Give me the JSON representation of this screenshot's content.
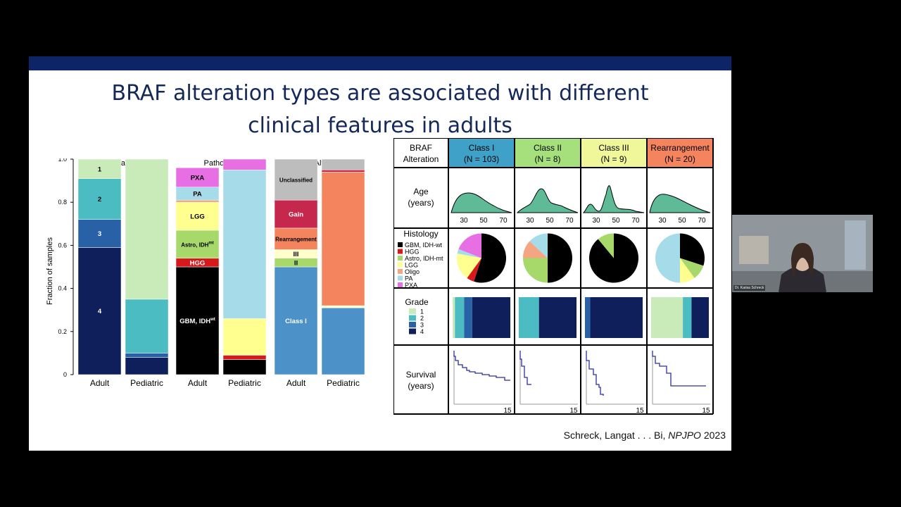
{
  "slide": {
    "title_line1": "BRAF alteration types are associated with different",
    "title_line2": "clinical features in adults",
    "citation_authors": "Schreck, Langat . . . Bi,",
    "citation_journal": "NPJPO",
    "citation_year": "2023"
  },
  "stacked_charts": {
    "ylabel": "Fraction of samples",
    "yticks": [
      "1.0",
      "0.8",
      "0.6",
      "0.4",
      "0.2",
      "0"
    ],
    "panels": [
      {
        "title": "Grade",
        "bars": [
          "Adult",
          "Pediatric"
        ]
      },
      {
        "title": "Pathology",
        "bars": [
          "Adult",
          "Pediatric"
        ]
      },
      {
        "title": "BRAF Alteration",
        "bars": [
          "Adult",
          "Pediatric"
        ]
      }
    ]
  },
  "chart_data": [
    {
      "type": "bar",
      "stacked": true,
      "title": "Grade",
      "ylabel": "Fraction of samples",
      "ylim": [
        0,
        1
      ],
      "categories": [
        "Adult",
        "Pediatric"
      ],
      "series": [
        {
          "name": "4",
          "color": "#0f1f5c",
          "values": [
            0.59,
            0.08
          ]
        },
        {
          "name": "3",
          "color": "#2961a6",
          "values": [
            0.13,
            0.02
          ]
        },
        {
          "name": "2",
          "color": "#4bbcc1",
          "values": [
            0.19,
            0.25
          ]
        },
        {
          "name": "1",
          "color": "#c9eab9",
          "values": [
            0.09,
            0.65
          ]
        }
      ]
    },
    {
      "type": "bar",
      "stacked": true,
      "title": "Pathology",
      "ylim": [
        0,
        1
      ],
      "categories": [
        "Adult",
        "Pediatric"
      ],
      "series": [
        {
          "name": "GBM, IDHwt",
          "color": "#000000",
          "values": [
            0.5,
            0.07
          ]
        },
        {
          "name": "HGG",
          "color": "#d7191c",
          "values": [
            0.04,
            0.02
          ]
        },
        {
          "name": "Astro, IDHmt",
          "color": "#a6d96a",
          "values": [
            0.13,
            0.0
          ]
        },
        {
          "name": "LGG",
          "color": "#ffff8f",
          "values": [
            0.13,
            0.17
          ]
        },
        {
          "name": "Oligo",
          "color": "#f4a582",
          "values": [
            0.01,
            0.0
          ]
        },
        {
          "name": "PA",
          "color": "#a6dbea",
          "values": [
            0.06,
            0.69
          ]
        },
        {
          "name": "PXA",
          "color": "#e76fe3",
          "values": [
            0.09,
            0.05
          ]
        }
      ]
    },
    {
      "type": "bar",
      "stacked": true,
      "title": "BRAF Alteration",
      "ylim": [
        0,
        1
      ],
      "categories": [
        "Adult",
        "Pediatric"
      ],
      "series": [
        {
          "name": "Class I",
          "color": "#4c92c8",
          "values": [
            0.5,
            0.31
          ]
        },
        {
          "name": "II",
          "color": "#a6d96a",
          "values": [
            0.04,
            0.0
          ]
        },
        {
          "name": "III",
          "color": "#ffffcc",
          "values": [
            0.04,
            0.01
          ]
        },
        {
          "name": "Rearrangement",
          "color": "#f4845e",
          "values": [
            0.1,
            0.62
          ]
        },
        {
          "name": "Gain",
          "color": "#c6274c",
          "values": [
            0.13,
            0.01
          ]
        },
        {
          "name": "Unclassified",
          "color": "#bdbdbd",
          "values": [
            0.19,
            0.05
          ]
        }
      ]
    }
  ],
  "table": {
    "header_label": [
      "BRAF",
      "Alteration"
    ],
    "columns": [
      {
        "name": "Class I",
        "n": "(N = 103)",
        "color": "#3fa0c8"
      },
      {
        "name": "Class II",
        "n": "(N = 8)",
        "color": "#a6e07c"
      },
      {
        "name": "Class III",
        "n": "(N = 9)",
        "color": "#f0f69a"
      },
      {
        "name": "Rearrangement",
        "n": "(N = 20)",
        "color": "#f4845e"
      }
    ],
    "rows": {
      "age": [
        "Age",
        "(years)"
      ],
      "age_ticks": [
        "30",
        "50",
        "70"
      ],
      "histology": "Histology",
      "histology_legend": [
        "GBM, IDH-wt",
        "HGG",
        "Astro, IDH-mt",
        "LGG",
        "Oligo",
        "PA",
        "PXA"
      ],
      "grade": "Grade",
      "grade_legend": [
        "1",
        "2",
        "3",
        "4"
      ],
      "survival": [
        "Survival",
        "(years)"
      ],
      "survival_tick": "15"
    },
    "pies": [
      [
        0.55,
        0.05,
        0.0,
        0.18,
        0.0,
        0.03,
        0.19
      ],
      [
        0.5,
        0.0,
        0.25,
        0.0,
        0.12,
        0.13,
        0.0
      ],
      [
        0.89,
        0.0,
        0.11,
        0.0,
        0.0,
        0.0,
        0.0
      ],
      [
        0.3,
        0.0,
        0.1,
        0.1,
        0.0,
        0.5,
        0.0
      ]
    ],
    "grades": [
      [
        0.04,
        0.16,
        0.14,
        0.66
      ],
      [
        0.0,
        0.35,
        0.0,
        0.65
      ],
      [
        0.0,
        0.0,
        0.09,
        0.91
      ],
      [
        0.55,
        0.15,
        0.0,
        0.3
      ]
    ]
  },
  "video": {
    "participant": "Dr. Karisa Schreck"
  },
  "colors": {
    "band": "#0d2466",
    "title": "#14285a",
    "density": "#5fba98",
    "survival": "#2b2f9e",
    "histology": [
      "#000000",
      "#d7191c",
      "#a6d96a",
      "#ffff8f",
      "#f4a582",
      "#a6dbea",
      "#e76fe3"
    ],
    "grade": [
      "#c9eab9",
      "#4bbcc1",
      "#2961a6",
      "#0f1f5c"
    ]
  }
}
